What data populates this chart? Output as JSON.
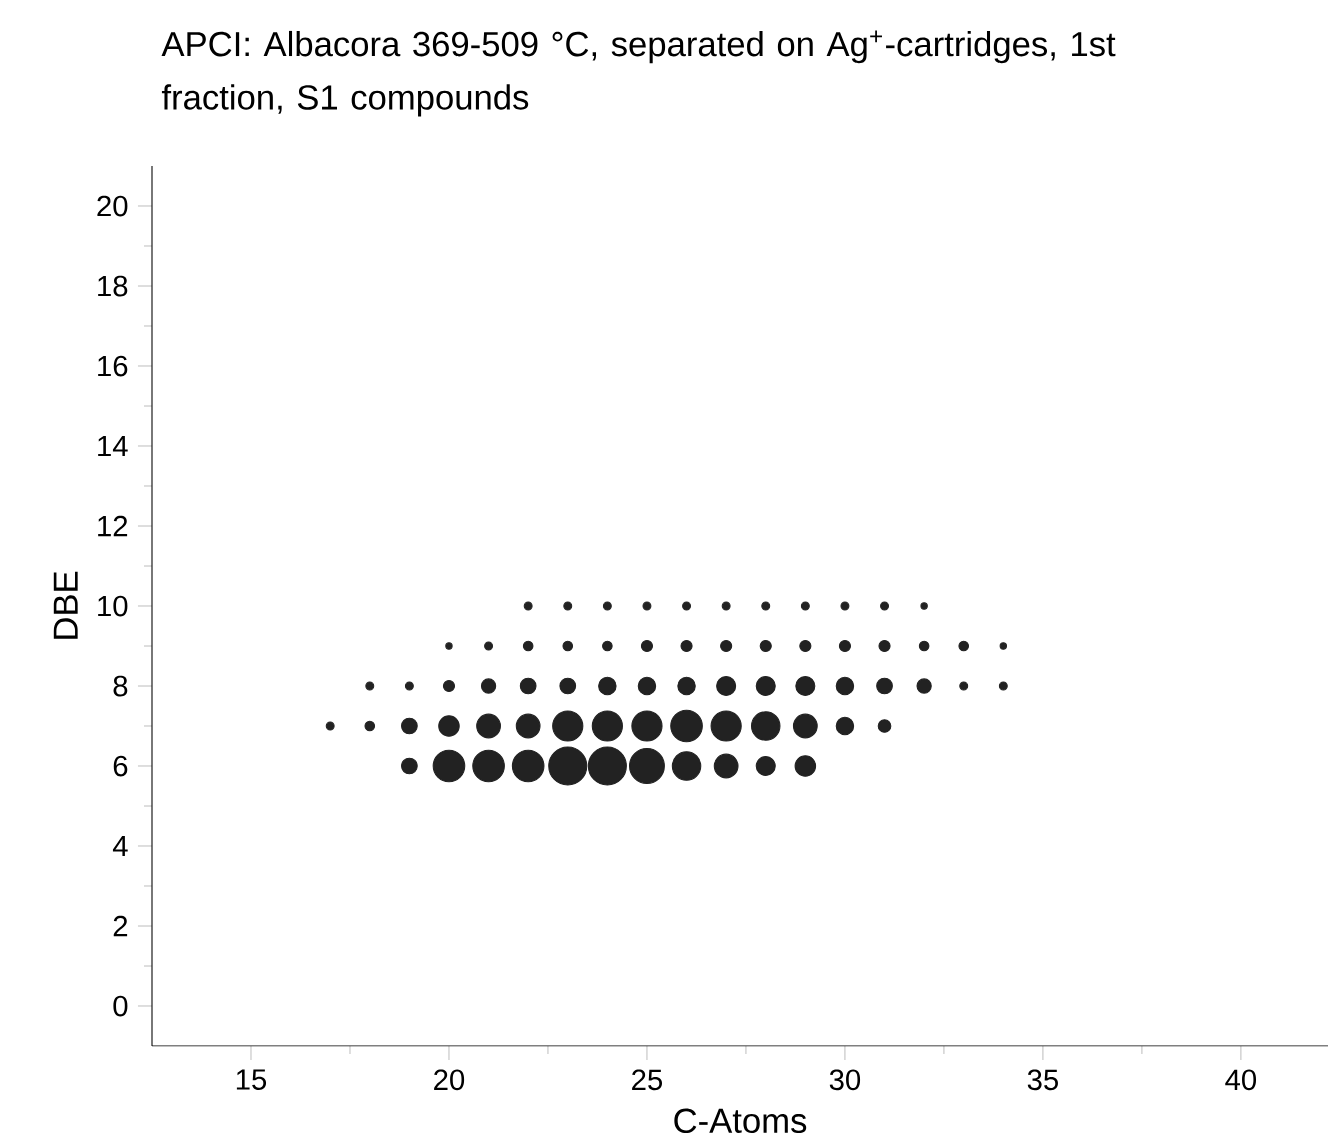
{
  "chart_data": {
    "type": "bubble",
    "title": "APCI: Albacora 369-509 °C, separated on Ag$^{+}$-cartridges, 1st fraction, S1 compounds",
    "xlabel": "C-Atoms",
    "ylabel": "DBE",
    "xlim": [
      12.5,
      42.2
    ],
    "ylim": [
      -1,
      21
    ],
    "xticks": [
      15,
      20,
      25,
      30,
      35,
      40
    ],
    "yticks": [
      0,
      2,
      4,
      6,
      8,
      10,
      12,
      14,
      16,
      18,
      20
    ],
    "series": [
      {
        "color": "#222222",
        "x": [
          19,
          20,
          21,
          22,
          23,
          24,
          25,
          26,
          27,
          28,
          29
        ],
        "values": [
          6,
          6,
          6,
          6,
          6,
          6,
          6,
          6,
          6,
          6,
          6
        ],
        "sizes": [
          0.17,
          0.69,
          0.69,
          0.69,
          1,
          1,
          0.84,
          0.56,
          0.39,
          0.25,
          0.29
        ]
      },
      {
        "color": "#222222",
        "x": [
          17,
          18,
          19,
          20,
          21,
          22,
          23,
          24,
          25,
          26,
          27,
          28,
          29,
          30,
          31
        ],
        "values": [
          7,
          7,
          7,
          7,
          7,
          7,
          7,
          7,
          7,
          7,
          7,
          7,
          7,
          7,
          7
        ],
        "sizes": [
          0.043,
          0.063,
          0.17,
          0.29,
          0.39,
          0.39,
          0.63,
          0.63,
          0.63,
          0.69,
          0.63,
          0.56,
          0.39,
          0.21,
          0.11
        ]
      },
      {
        "color": "#222222",
        "x": [
          18,
          19,
          20,
          21,
          22,
          23,
          24,
          25,
          26,
          27,
          28,
          29,
          30,
          31,
          32,
          33,
          34
        ],
        "values": [
          8,
          8,
          8,
          8,
          8,
          8,
          8,
          8,
          8,
          8,
          8,
          8,
          8,
          8,
          8,
          8,
          8
        ],
        "sizes": [
          0.043,
          0.043,
          0.085,
          0.14,
          0.17,
          0.17,
          0.21,
          0.21,
          0.21,
          0.25,
          0.25,
          0.25,
          0.21,
          0.17,
          0.14,
          0.043,
          0.043
        ]
      },
      {
        "color": "#222222",
        "x": [
          20,
          21,
          22,
          23,
          24,
          25,
          26,
          27,
          28,
          29,
          30,
          31,
          32,
          33,
          34
        ],
        "values": [
          9,
          9,
          9,
          9,
          9,
          9,
          9,
          9,
          9,
          9,
          9,
          9,
          9,
          9,
          9
        ],
        "sizes": [
          0.028,
          0.043,
          0.063,
          0.063,
          0.063,
          0.085,
          0.085,
          0.085,
          0.085,
          0.085,
          0.085,
          0.085,
          0.063,
          0.063,
          0.028
        ]
      },
      {
        "color": "#222222",
        "x": [
          22,
          23,
          24,
          25,
          26,
          27,
          28,
          29,
          30,
          31,
          32
        ],
        "values": [
          10,
          10,
          10,
          10,
          10,
          10,
          10,
          10,
          10,
          10,
          10
        ],
        "sizes": [
          0.043,
          0.043,
          0.043,
          0.043,
          0.043,
          0.043,
          0.043,
          0.043,
          0.043,
          0.043,
          0.028
        ]
      }
    ]
  }
}
